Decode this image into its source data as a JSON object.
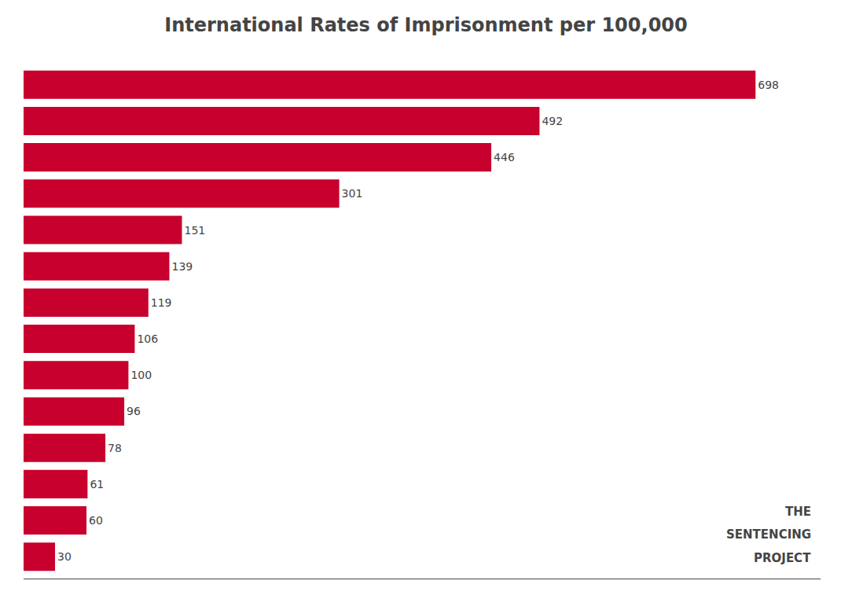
{
  "chart_data": {
    "type": "bar",
    "orientation": "horizontal",
    "title": "International Rates of Imprisonment per 100,000",
    "values": [
      698,
      492,
      446,
      301,
      151,
      139,
      119,
      106,
      100,
      96,
      78,
      61,
      60,
      30
    ],
    "color": "#C8002D",
    "xlim": [
      0,
      760
    ],
    "data_labels": true,
    "tick_labels": false,
    "annotations": [
      "THE",
      "SENTENCING",
      "PROJECT"
    ]
  }
}
